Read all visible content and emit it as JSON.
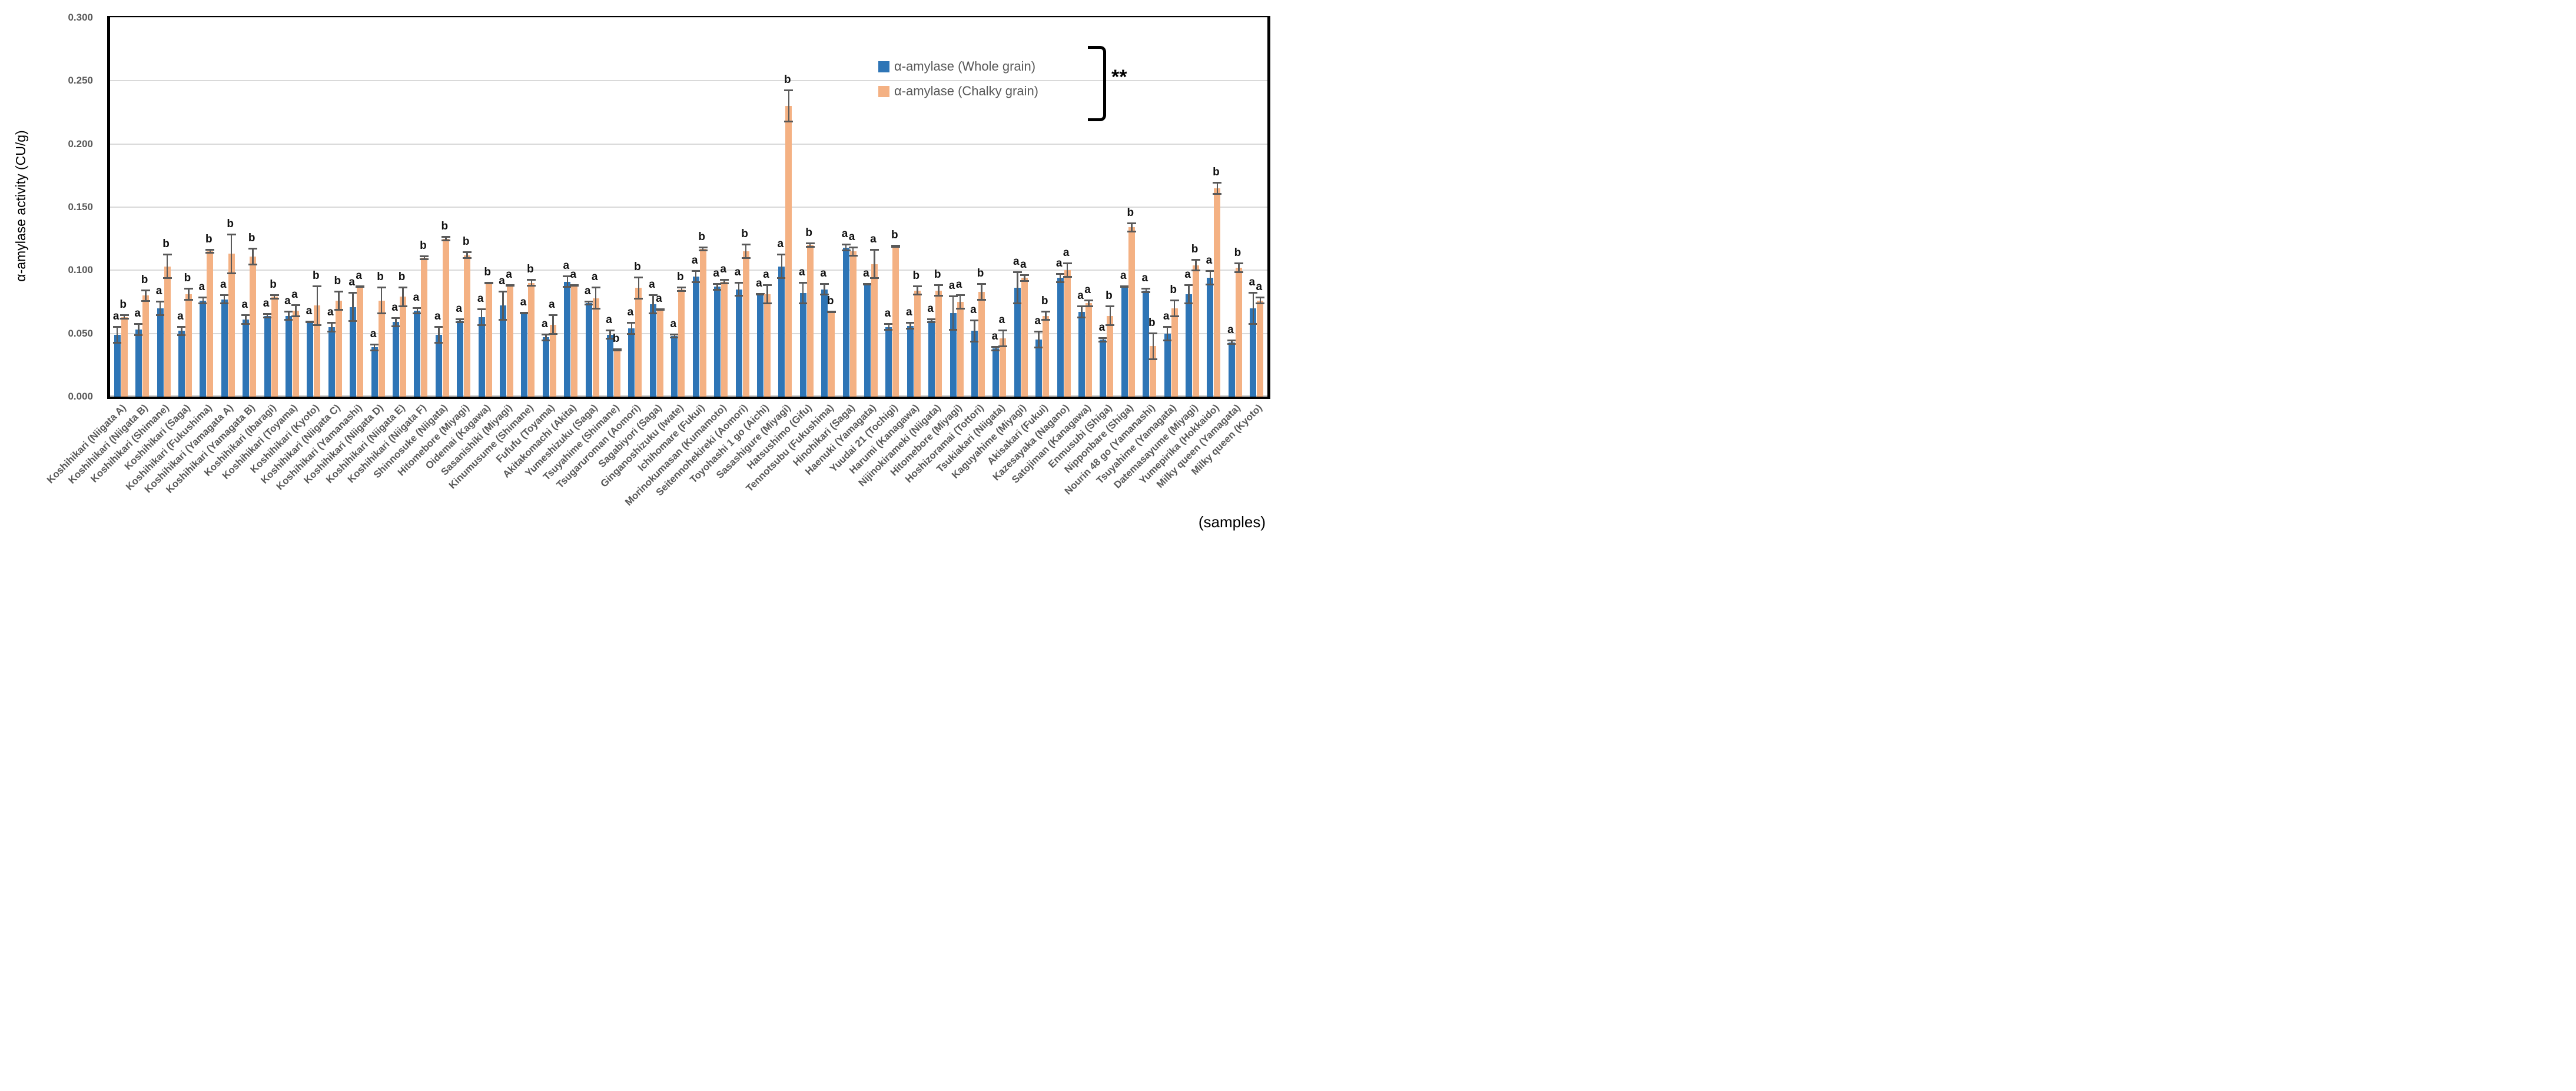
{
  "chart_data": {
    "type": "bar",
    "title": "",
    "ylabel": "α-amylase activity (CU/g)",
    "xlabel": "(samples)",
    "ylim": [
      0,
      0.3
    ],
    "y_ticks": [
      "0.000",
      "0.050",
      "0.100",
      "0.150",
      "0.200",
      "0.250",
      "0.300"
    ],
    "grid": true,
    "legend_position": "top-right",
    "significance": "**",
    "series_names": [
      "α-amylase (Whole grain)",
      "α-amylase (Chalky grain)"
    ],
    "colors": {
      "whole": "#2E75B6",
      "chalky": "#F4B183",
      "error": "#595959",
      "gridline": "#D9D9D9"
    },
    "samples": [
      {
        "label": "Koshihikari (Niigata A)",
        "whole": 0.049,
        "whole_err": 0.007,
        "whole_letter": "a",
        "chalky": 0.063,
        "chalky_err": 0.002,
        "chalky_letter": "b"
      },
      {
        "label": "Koshihikari (Niigata B)",
        "whole": 0.053,
        "whole_err": 0.005,
        "whole_letter": "a",
        "chalky": 0.08,
        "chalky_err": 0.005,
        "chalky_letter": "b"
      },
      {
        "label": "Koshihikari (Shimane)",
        "whole": 0.07,
        "whole_err": 0.006,
        "whole_letter": "a",
        "chalky": 0.103,
        "chalky_err": 0.01,
        "chalky_letter": "b"
      },
      {
        "label": "Koshihikari (Saga)",
        "whole": 0.052,
        "whole_err": 0.004,
        "whole_letter": "a",
        "chalky": 0.081,
        "chalky_err": 0.005,
        "chalky_letter": "b"
      },
      {
        "label": "Koshihikari (Fukushima)",
        "whole": 0.076,
        "whole_err": 0.003,
        "whole_letter": "a",
        "chalky": 0.115,
        "chalky_err": 0.002,
        "chalky_letter": "b"
      },
      {
        "label": "Koshihikari (Yamagata A)",
        "whole": 0.077,
        "whole_err": 0.004,
        "whole_letter": "a",
        "chalky": 0.113,
        "chalky_err": 0.016,
        "chalky_letter": "b"
      },
      {
        "label": "Koshihikari (Yamagata B)",
        "whole": 0.061,
        "whole_err": 0.004,
        "whole_letter": "a",
        "chalky": 0.111,
        "chalky_err": 0.007,
        "chalky_letter": "b"
      },
      {
        "label": "Koshihikari (Ibaragi)",
        "whole": 0.064,
        "whole_err": 0.002,
        "whole_letter": "a",
        "chalky": 0.079,
        "chalky_err": 0.002,
        "chalky_letter": "b"
      },
      {
        "label": "Koshihikari (Toyama)",
        "whole": 0.064,
        "whole_err": 0.004,
        "whole_letter": "a",
        "chalky": 0.068,
        "chalky_err": 0.005,
        "chalky_letter": "a"
      },
      {
        "label": "Koshihikari (Kyoto)",
        "whole": 0.059,
        "whole_err": 0.001,
        "whole_letter": "a",
        "chalky": 0.072,
        "chalky_err": 0.016,
        "chalky_letter": "b"
      },
      {
        "label": "Koshihikari (Niigata C)",
        "whole": 0.055,
        "whole_err": 0.004,
        "whole_letter": "a",
        "chalky": 0.076,
        "chalky_err": 0.008,
        "chalky_letter": "b"
      },
      {
        "label": "Koshihikari (Yamanashi)",
        "whole": 0.071,
        "whole_err": 0.012,
        "whole_letter": "a",
        "chalky": 0.087,
        "chalky_err": 0.001,
        "chalky_letter": "a"
      },
      {
        "label": "Koshihikari (Niigata D)",
        "whole": 0.039,
        "whole_err": 0.003,
        "whole_letter": "a",
        "chalky": 0.076,
        "chalky_err": 0.011,
        "chalky_letter": "b"
      },
      {
        "label": "Koshihikari (Niigata E)",
        "whole": 0.059,
        "whole_err": 0.004,
        "whole_letter": "a",
        "chalky": 0.079,
        "chalky_err": 0.008,
        "chalky_letter": "b"
      },
      {
        "label": "Koshihikari (Niigata F)",
        "whole": 0.068,
        "whole_err": 0.003,
        "whole_letter": "a",
        "chalky": 0.11,
        "chalky_err": 0.002,
        "chalky_letter": "b"
      },
      {
        "label": "Shinnosuke (Niigata)",
        "whole": 0.049,
        "whole_err": 0.007,
        "whole_letter": "a",
        "chalky": 0.125,
        "chalky_err": 0.002,
        "chalky_letter": "b"
      },
      {
        "label": "Hitomebore (Miyagi)",
        "whole": 0.06,
        "whole_err": 0.002,
        "whole_letter": "a",
        "chalky": 0.112,
        "chalky_err": 0.003,
        "chalky_letter": "b"
      },
      {
        "label": "Oidemai (Kagawa)",
        "whole": 0.063,
        "whole_err": 0.007,
        "whole_letter": "a",
        "chalky": 0.09,
        "chalky_err": 0.001,
        "chalky_letter": "b"
      },
      {
        "label": "Sasanishiki (Miyagi)",
        "whole": 0.072,
        "whole_err": 0.012,
        "whole_letter": "a",
        "chalky": 0.088,
        "chalky_err": 0.001,
        "chalky_letter": "a"
      },
      {
        "label": "Kinumusume (Shimane)",
        "whole": 0.066,
        "whole_err": 0.001,
        "whole_letter": "a",
        "chalky": 0.09,
        "chalky_err": 0.003,
        "chalky_letter": "b"
      },
      {
        "label": "Fufufu (Toyama)",
        "whole": 0.047,
        "whole_err": 0.003,
        "whole_letter": "a",
        "chalky": 0.057,
        "chalky_err": 0.008,
        "chalky_letter": "a"
      },
      {
        "label": "Akitakomachi (Akita)",
        "whole": 0.091,
        "whole_err": 0.005,
        "whole_letter": "a",
        "chalky": 0.088,
        "chalky_err": 0.001,
        "chalky_letter": "a"
      },
      {
        "label": "Yumeshizuku (Saga)",
        "whole": 0.074,
        "whole_err": 0.002,
        "whole_letter": "a",
        "chalky": 0.078,
        "chalky_err": 0.009,
        "chalky_letter": "a"
      },
      {
        "label": "Tsuyahime (Shimane)",
        "whole": 0.049,
        "whole_err": 0.004,
        "whole_letter": "a",
        "chalky": 0.037,
        "chalky_err": 0.001,
        "chalky_letter": "b"
      },
      {
        "label": "Tsugaruroman (Aomori)",
        "whole": 0.054,
        "whole_err": 0.005,
        "whole_letter": "a",
        "chalky": 0.086,
        "chalky_err": 0.009,
        "chalky_letter": "b"
      },
      {
        "label": "Sagabiyori (Saga)",
        "whole": 0.073,
        "whole_err": 0.008,
        "whole_letter": "a",
        "chalky": 0.069,
        "chalky_err": 0.001,
        "chalky_letter": "a"
      },
      {
        "label": "Ginganoshizuku (Iwate)",
        "whole": 0.048,
        "whole_err": 0.002,
        "whole_letter": "a",
        "chalky": 0.085,
        "chalky_err": 0.002,
        "chalky_letter": "b"
      },
      {
        "label": "Ichihomare (Fukui)",
        "whole": 0.095,
        "whole_err": 0.005,
        "whole_letter": "a",
        "chalky": 0.117,
        "chalky_err": 0.002,
        "chalky_letter": "b"
      },
      {
        "label": "Morinokumasan (Kumamoto)",
        "whole": 0.087,
        "whole_err": 0.003,
        "whole_letter": "a",
        "chalky": 0.091,
        "chalky_err": 0.002,
        "chalky_letter": "a"
      },
      {
        "label": "Seitennohekireki (Aomori)",
        "whole": 0.085,
        "whole_err": 0.006,
        "whole_letter": "a",
        "chalky": 0.115,
        "chalky_err": 0.006,
        "chalky_letter": "b"
      },
      {
        "label": "Toyohashi 1 go (Aichi)",
        "whole": 0.081,
        "whole_err": 0.001,
        "whole_letter": "a",
        "chalky": 0.081,
        "chalky_err": 0.008,
        "chalky_letter": "a"
      },
      {
        "label": "Sasashigure (Miyagi)",
        "whole": 0.103,
        "whole_err": 0.01,
        "whole_letter": "a",
        "chalky": 0.23,
        "chalky_err": 0.013,
        "chalky_letter": "b"
      },
      {
        "label": "Hatsushimo (Gifu)",
        "whole": 0.082,
        "whole_err": 0.009,
        "whole_letter": "a",
        "chalky": 0.12,
        "chalky_err": 0.002,
        "chalky_letter": "b"
      },
      {
        "label": "Tennotsubu (Fukushima)",
        "whole": 0.085,
        "whole_err": 0.005,
        "whole_letter": "a",
        "chalky": 0.067,
        "chalky_err": 0.001,
        "chalky_letter": "b"
      },
      {
        "label": "Hinohikari (Saga)",
        "whole": 0.118,
        "whole_err": 0.003,
        "whole_letter": "a",
        "chalky": 0.115,
        "chalky_err": 0.004,
        "chalky_letter": "a"
      },
      {
        "label": "Haenuki (Yamagata)",
        "whole": 0.089,
        "whole_err": 0.001,
        "whole_letter": "a",
        "chalky": 0.105,
        "chalky_err": 0.012,
        "chalky_letter": "a"
      },
      {
        "label": "Yuudai 21 (Tochigi)",
        "whole": 0.055,
        "whole_err": 0.003,
        "whole_letter": "a",
        "chalky": 0.119,
        "chalky_err": 0.001,
        "chalky_letter": "b"
      },
      {
        "label": "Harumi (Kanagawa)",
        "whole": 0.056,
        "whole_err": 0.003,
        "whole_letter": "a",
        "chalky": 0.084,
        "chalky_err": 0.004,
        "chalky_letter": "b"
      },
      {
        "label": "Nijinokirameki (Niigata)",
        "whole": 0.06,
        "whole_err": 0.002,
        "whole_letter": "a",
        "chalky": 0.084,
        "chalky_err": 0.005,
        "chalky_letter": "b"
      },
      {
        "label": "Hitomebore (Miyagi)",
        "whole": 0.066,
        "whole_err": 0.014,
        "whole_letter": "a",
        "chalky": 0.075,
        "chalky_err": 0.006,
        "chalky_letter": "a"
      },
      {
        "label": "Hoshizoramai (Tottori)",
        "whole": 0.052,
        "whole_err": 0.009,
        "whole_letter": "a",
        "chalky": 0.083,
        "chalky_err": 0.007,
        "chalky_letter": "b"
      },
      {
        "label": "Tsukiakari (Niigata)",
        "whole": 0.038,
        "whole_err": 0.002,
        "whole_letter": "a",
        "chalky": 0.046,
        "chalky_err": 0.007,
        "chalky_letter": "a"
      },
      {
        "label": "Kaguyahime (Miyagi)",
        "whole": 0.086,
        "whole_err": 0.013,
        "whole_letter": "a",
        "chalky": 0.094,
        "chalky_err": 0.003,
        "chalky_letter": "a"
      },
      {
        "label": "Akisakari (Fukui)",
        "whole": 0.045,
        "whole_err": 0.007,
        "whole_letter": "a",
        "chalky": 0.064,
        "chalky_err": 0.004,
        "chalky_letter": "b"
      },
      {
        "label": "Kazesayaka (Nagano)",
        "whole": 0.094,
        "whole_err": 0.004,
        "whole_letter": "a",
        "chalky": 0.1,
        "chalky_err": 0.006,
        "chalky_letter": "a"
      },
      {
        "label": "Satojiman (Kanagawa)",
        "whole": 0.067,
        "whole_err": 0.005,
        "whole_letter": "a",
        "chalky": 0.074,
        "chalky_err": 0.003,
        "chalky_letter": "a"
      },
      {
        "label": "Enmusubi (Shiga)",
        "whole": 0.045,
        "whole_err": 0.002,
        "whole_letter": "a",
        "chalky": 0.064,
        "chalky_err": 0.008,
        "chalky_letter": "b"
      },
      {
        "label": "Nipponbare (Shiga)",
        "whole": 0.087,
        "whole_err": 0.001,
        "whole_letter": "a",
        "chalky": 0.134,
        "chalky_err": 0.004,
        "chalky_letter": "b"
      },
      {
        "label": "Nourin 48 go (Yamanashi)",
        "whole": 0.084,
        "whole_err": 0.002,
        "whole_letter": "a",
        "chalky": 0.04,
        "chalky_err": 0.011,
        "chalky_letter": "b"
      },
      {
        "label": "Tsuyahime (Yamagata)",
        "whole": 0.05,
        "whole_err": 0.006,
        "whole_letter": "a",
        "chalky": 0.07,
        "chalky_err": 0.007,
        "chalky_letter": "b"
      },
      {
        "label": "Datemasayume (Miyagi)",
        "whole": 0.081,
        "whole_err": 0.008,
        "whole_letter": "a",
        "chalky": 0.104,
        "chalky_err": 0.005,
        "chalky_letter": "b"
      },
      {
        "label": "Yumepirika (Hokkaido)",
        "whole": 0.094,
        "whole_err": 0.006,
        "whole_letter": "a",
        "chalky": 0.165,
        "chalky_err": 0.005,
        "chalky_letter": "b"
      },
      {
        "label": "Milky queen (Yamagata)",
        "whole": 0.043,
        "whole_err": 0.002,
        "whole_letter": "a",
        "chalky": 0.102,
        "chalky_err": 0.004,
        "chalky_letter": "b"
      },
      {
        "label": "Milky queen (Kyoto)",
        "whole": 0.07,
        "whole_err": 0.013,
        "whole_letter": "a",
        "chalky": 0.076,
        "chalky_err": 0.003,
        "chalky_letter": "a"
      }
    ]
  },
  "legend": {
    "items": [
      {
        "label": "α-amylase (Whole grain)",
        "color": "#2E75B6"
      },
      {
        "label": "α-amylase (Chalky grain)",
        "color": "#F4B183"
      }
    ],
    "significance_label": "**"
  },
  "axis": {
    "y_title": "α-amylase activity (CU/g)",
    "x_note": "(samples)"
  }
}
